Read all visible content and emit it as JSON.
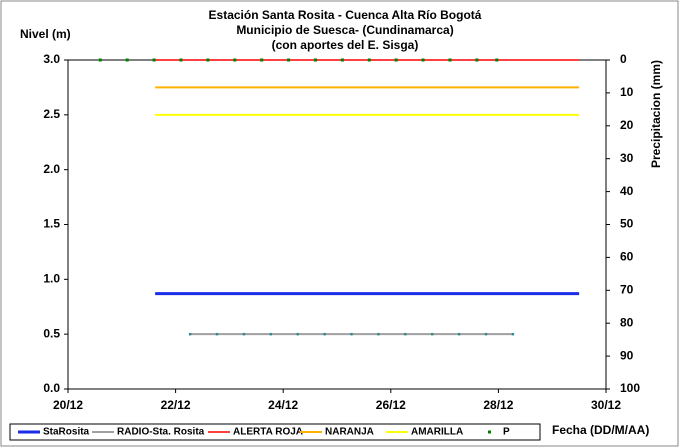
{
  "chart_data": {
    "type": "line",
    "title": [
      "Estación Santa Rosita - Cuenca Alta Río Bogotá",
      "Municipio de Suesca- (Cundinamarca)",
      "(con aportes del  E. Sisga)"
    ],
    "ylabel": "Nivel (m)",
    "y2label": "Precipitacion (mm)",
    "xlabel": "Fecha (DD/M/AA)",
    "xlim": [
      20,
      30
    ],
    "xticks": [
      {
        "value": 20,
        "label": "20/12"
      },
      {
        "value": 22,
        "label": "22/12"
      },
      {
        "value": 24,
        "label": "24/12"
      },
      {
        "value": 26,
        "label": "26/12"
      },
      {
        "value": 28,
        "label": "28/12"
      },
      {
        "value": 30,
        "label": "30/12"
      }
    ],
    "ylim": [
      0,
      3
    ],
    "yticks": [
      {
        "value": 0,
        "label": "0.0"
      },
      {
        "value": 0.5,
        "label": "0.5"
      },
      {
        "value": 1,
        "label": "1.0"
      },
      {
        "value": 1.5,
        "label": "1.5"
      },
      {
        "value": 2,
        "label": "2.0"
      },
      {
        "value": 2.5,
        "label": "2.5"
      },
      {
        "value": 3,
        "label": "3.0"
      }
    ],
    "y2lim": [
      100,
      0
    ],
    "y2ticks": [
      0,
      10,
      20,
      30,
      40,
      50,
      60,
      70,
      80,
      90,
      100
    ],
    "series": [
      {
        "name": "StaRosita",
        "color": "#1a2ee6",
        "width": 3,
        "x": [
          21.62,
          29.5
        ],
        "values": [
          0.87,
          0.87
        ]
      },
      {
        "name": "RADIO-Sta. Rosita",
        "color": "#a0a0a0",
        "marker": "#2e8b8b",
        "width": 2,
        "x": [
          22.27,
          22.77,
          23.27,
          23.77,
          24.27,
          24.77,
          25.27,
          25.77,
          26.27,
          26.77,
          27.27,
          27.77,
          28.27
        ],
        "values": [
          0.5,
          0.5,
          0.5,
          0.5,
          0.5,
          0.5,
          0.5,
          0.5,
          0.5,
          0.5,
          0.5,
          0.5,
          0.5
        ]
      },
      {
        "name": "ALERTA ROJA",
        "color": "#ff0000",
        "width": 1.5,
        "x": [
          21.62,
          29.5
        ],
        "values": [
          3,
          3
        ]
      },
      {
        "name": "NARANJA",
        "color": "#ffb000",
        "width": 2,
        "x": [
          21.62,
          29.5
        ],
        "values": [
          2.75,
          2.75
        ]
      },
      {
        "name": "AMARILLA",
        "color": "#ffff00",
        "width": 2,
        "x": [
          21.62,
          29.5
        ],
        "values": [
          2.5,
          2.5
        ]
      },
      {
        "name": "P",
        "color": "#008000",
        "axis": "y2",
        "dots": true,
        "x": [
          20.6,
          21.1,
          21.6,
          22.1,
          22.6,
          23.1,
          23.6,
          24.1,
          24.6,
          25.1,
          25.6,
          26.1,
          26.6,
          27.1,
          27.6,
          27.97
        ],
        "values": [
          0,
          0,
          0,
          0,
          0,
          0,
          0,
          0,
          0,
          0,
          0,
          0,
          0,
          0,
          0,
          0
        ]
      }
    ]
  }
}
